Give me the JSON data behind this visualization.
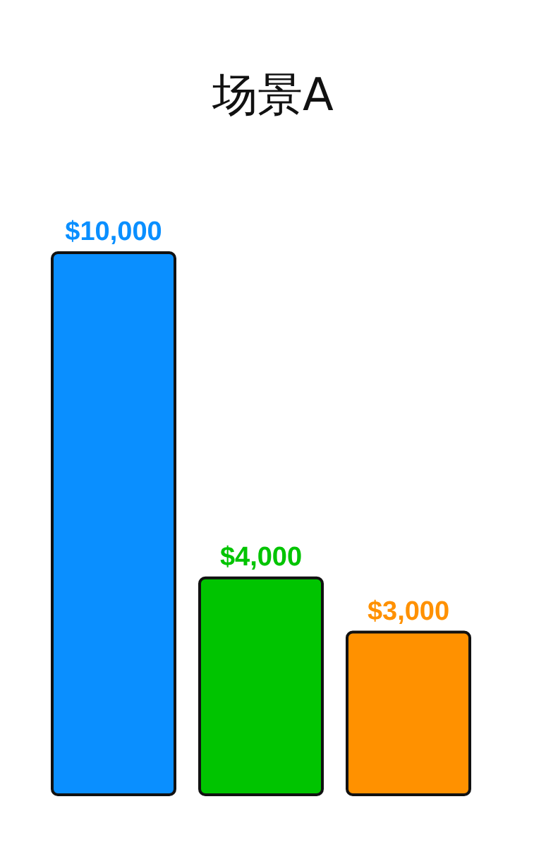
{
  "chart_data": {
    "type": "bar",
    "title": "场景A",
    "categories": [
      null,
      null,
      null
    ],
    "values": [
      10000,
      4000,
      3000
    ],
    "value_labels": [
      "$10,000",
      "$4,000",
      "$3,000"
    ],
    "colors": [
      "#0a8fff",
      "#00c400",
      "#ff9100"
    ]
  }
}
